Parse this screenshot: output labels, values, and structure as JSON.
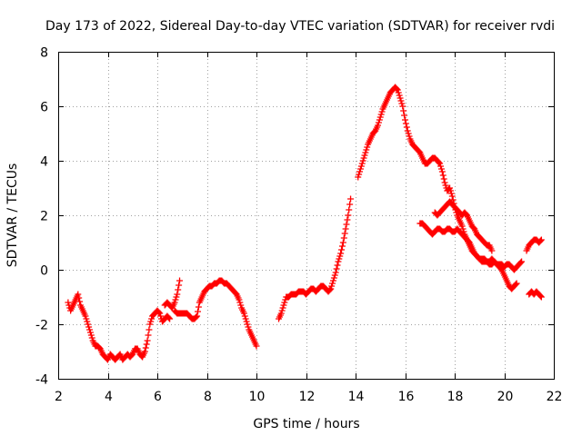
{
  "chart_data": {
    "type": "scatter",
    "title": "Day 173 of 2022, Sidereal Day-to-day VTEC variation (SDTVAR) for receiver rvdi",
    "xlabel": "GPS time / hours",
    "ylabel": "SDTVAR / TECUs",
    "xlim": [
      2,
      22
    ],
    "ylim": [
      -4,
      8
    ],
    "x_ticks": [
      "2",
      "4",
      "6",
      "8",
      "10",
      "12",
      "14",
      "16",
      "18",
      "20",
      "22"
    ],
    "y_ticks": [
      "-4",
      "-2",
      "0",
      "2",
      "4",
      "6",
      "8"
    ],
    "grid": true,
    "marker": "plus",
    "marker_color": "#ff0000",
    "series": [
      {
        "name": "segment 1",
        "points": [
          [
            2.4,
            -1.2
          ],
          [
            2.5,
            -1.5
          ],
          [
            2.6,
            -1.3
          ],
          [
            2.7,
            -1.1
          ],
          [
            2.8,
            -0.9
          ],
          [
            2.9,
            -1.3
          ],
          [
            3.0,
            -1.5
          ],
          [
            3.1,
            -1.7
          ],
          [
            3.2,
            -2.0
          ],
          [
            3.3,
            -2.3
          ],
          [
            3.4,
            -2.6
          ],
          [
            3.5,
            -2.8
          ],
          [
            3.6,
            -2.8
          ],
          [
            3.7,
            -2.9
          ],
          [
            3.8,
            -3.1
          ],
          [
            3.9,
            -3.2
          ],
          [
            4.0,
            -3.3
          ],
          [
            4.1,
            -3.1
          ],
          [
            4.2,
            -3.2
          ],
          [
            4.3,
            -3.3
          ],
          [
            4.4,
            -3.2
          ],
          [
            4.5,
            -3.1
          ],
          [
            4.6,
            -3.3
          ],
          [
            4.7,
            -3.2
          ],
          [
            4.8,
            -3.1
          ],
          [
            4.9,
            -3.2
          ],
          [
            5.0,
            -3.1
          ],
          [
            5.1,
            -2.9
          ],
          [
            5.2,
            -2.9
          ],
          [
            5.3,
            -3.1
          ],
          [
            5.4,
            -3.2
          ],
          [
            5.5,
            -3.0
          ],
          [
            5.6,
            -2.6
          ],
          [
            5.7,
            -2.0
          ],
          [
            5.8,
            -1.7
          ],
          [
            5.9,
            -1.6
          ],
          [
            6.0,
            -1.5
          ],
          [
            6.1,
            -1.6
          ],
          [
            6.2,
            -1.9
          ],
          [
            6.3,
            -1.8
          ],
          [
            6.4,
            -1.7
          ],
          [
            6.5,
            -1.8
          ],
          [
            6.3,
            -1.3
          ],
          [
            6.4,
            -1.2
          ],
          [
            6.5,
            -1.3
          ],
          [
            6.6,
            -1.4
          ],
          [
            6.7,
            -1.2
          ],
          [
            6.8,
            -0.9
          ],
          [
            6.9,
            -0.4
          ],
          [
            6.7,
            -1.5
          ],
          [
            6.8,
            -1.6
          ],
          [
            6.9,
            -1.6
          ],
          [
            7.0,
            -1.6
          ],
          [
            7.1,
            -1.6
          ],
          [
            7.2,
            -1.6
          ],
          [
            7.3,
            -1.7
          ],
          [
            7.4,
            -1.8
          ],
          [
            7.5,
            -1.8
          ],
          [
            7.6,
            -1.7
          ],
          [
            7.7,
            -1.2
          ],
          [
            7.8,
            -1.0
          ],
          [
            7.9,
            -0.8
          ],
          [
            8.0,
            -0.7
          ],
          [
            8.1,
            -0.6
          ],
          [
            8.2,
            -0.6
          ],
          [
            8.3,
            -0.5
          ],
          [
            8.4,
            -0.5
          ],
          [
            8.5,
            -0.4
          ],
          [
            8.6,
            -0.4
          ],
          [
            8.7,
            -0.5
          ],
          [
            8.8,
            -0.5
          ],
          [
            8.9,
            -0.6
          ],
          [
            9.0,
            -0.7
          ],
          [
            9.1,
            -0.8
          ],
          [
            9.2,
            -0.9
          ],
          [
            9.3,
            -1.1
          ],
          [
            9.4,
            -1.4
          ],
          [
            9.5,
            -1.6
          ],
          [
            9.6,
            -1.9
          ],
          [
            9.7,
            -2.2
          ],
          [
            9.8,
            -2.4
          ],
          [
            9.9,
            -2.6
          ],
          [
            10.0,
            -2.8
          ]
        ]
      },
      {
        "name": "segment 2",
        "points": [
          [
            10.9,
            -1.8
          ],
          [
            11.0,
            -1.6
          ],
          [
            11.1,
            -1.3
          ],
          [
            11.2,
            -1.0
          ],
          [
            11.3,
            -1.0
          ],
          [
            11.4,
            -0.9
          ],
          [
            11.5,
            -0.9
          ],
          [
            11.6,
            -0.9
          ],
          [
            11.7,
            -0.8
          ],
          [
            11.8,
            -0.8
          ],
          [
            11.9,
            -0.8
          ],
          [
            12.0,
            -0.9
          ],
          [
            12.1,
            -0.8
          ],
          [
            12.2,
            -0.7
          ],
          [
            12.3,
            -0.7
          ],
          [
            12.4,
            -0.8
          ],
          [
            12.5,
            -0.7
          ],
          [
            12.6,
            -0.6
          ],
          [
            12.7,
            -0.6
          ],
          [
            12.8,
            -0.7
          ],
          [
            12.9,
            -0.8
          ],
          [
            13.0,
            -0.7
          ],
          [
            13.1,
            -0.4
          ],
          [
            13.2,
            -0.1
          ],
          [
            13.3,
            0.3
          ],
          [
            13.4,
            0.6
          ],
          [
            13.5,
            1.0
          ],
          [
            13.6,
            1.5
          ],
          [
            13.7,
            2.0
          ],
          [
            13.8,
            2.6
          ]
        ]
      },
      {
        "name": "segment 3",
        "points": [
          [
            14.1,
            3.4
          ],
          [
            14.2,
            3.7
          ],
          [
            14.3,
            4.0
          ],
          [
            14.4,
            4.3
          ],
          [
            14.5,
            4.6
          ],
          [
            14.6,
            4.8
          ],
          [
            14.7,
            5.0
          ],
          [
            14.8,
            5.1
          ],
          [
            14.9,
            5.3
          ],
          [
            15.0,
            5.6
          ],
          [
            15.1,
            5.9
          ],
          [
            15.2,
            6.1
          ],
          [
            15.3,
            6.3
          ],
          [
            15.4,
            6.5
          ],
          [
            15.5,
            6.6
          ],
          [
            15.6,
            6.7
          ],
          [
            15.7,
            6.6
          ],
          [
            15.8,
            6.3
          ],
          [
            15.9,
            6.0
          ],
          [
            16.0,
            5.5
          ],
          [
            16.1,
            5.1
          ],
          [
            16.2,
            4.8
          ],
          [
            16.3,
            4.6
          ],
          [
            16.4,
            4.5
          ],
          [
            16.5,
            4.4
          ],
          [
            16.6,
            4.3
          ],
          [
            16.7,
            4.1
          ],
          [
            16.8,
            3.9
          ],
          [
            16.9,
            3.9
          ],
          [
            17.0,
            4.0
          ],
          [
            17.1,
            4.1
          ],
          [
            17.2,
            4.1
          ],
          [
            17.3,
            4.0
          ],
          [
            17.4,
            3.9
          ],
          [
            17.5,
            3.6
          ],
          [
            17.6,
            3.2
          ],
          [
            17.7,
            2.9
          ],
          [
            17.8,
            3.0
          ],
          [
            17.9,
            2.7
          ],
          [
            18.0,
            2.3
          ],
          [
            18.1,
            2.0
          ],
          [
            18.2,
            1.8
          ],
          [
            18.3,
            1.6
          ],
          [
            18.4,
            1.3
          ],
          [
            18.5,
            1.1
          ],
          [
            18.6,
            0.9
          ],
          [
            18.7,
            0.7
          ],
          [
            18.8,
            0.6
          ],
          [
            18.9,
            0.5
          ],
          [
            19.0,
            0.4
          ],
          [
            19.1,
            0.3
          ],
          [
            19.2,
            0.3
          ],
          [
            19.3,
            0.3
          ],
          [
            19.4,
            0.2
          ],
          [
            19.5,
            0.2
          ],
          [
            19.6,
            0.3
          ],
          [
            19.7,
            0.2
          ],
          [
            19.8,
            0.1
          ],
          [
            19.9,
            0.0
          ],
          [
            20.0,
            -0.2
          ],
          [
            20.1,
            -0.4
          ],
          [
            20.2,
            -0.6
          ],
          [
            20.3,
            -0.7
          ],
          [
            20.4,
            -0.6
          ],
          [
            20.5,
            -0.5
          ]
        ]
      },
      {
        "name": "segment 4",
        "points": [
          [
            16.6,
            1.7
          ],
          [
            16.7,
            1.7
          ],
          [
            16.8,
            1.6
          ],
          [
            16.9,
            1.5
          ],
          [
            17.0,
            1.4
          ],
          [
            17.1,
            1.3
          ],
          [
            17.2,
            1.4
          ],
          [
            17.3,
            1.5
          ],
          [
            17.4,
            1.5
          ],
          [
            17.5,
            1.4
          ],
          [
            17.6,
            1.4
          ],
          [
            17.7,
            1.5
          ],
          [
            17.8,
            1.5
          ],
          [
            17.9,
            1.4
          ],
          [
            18.0,
            1.4
          ],
          [
            18.1,
            1.5
          ],
          [
            18.2,
            1.4
          ],
          [
            18.3,
            1.3
          ],
          [
            18.4,
            1.2
          ],
          [
            18.5,
            1.1
          ],
          [
            18.6,
            1.0
          ],
          [
            18.7,
            0.8
          ],
          [
            18.8,
            0.6
          ],
          [
            18.9,
            0.5
          ],
          [
            19.0,
            0.4
          ],
          [
            19.1,
            0.4
          ],
          [
            19.2,
            0.4
          ],
          [
            19.3,
            0.3
          ],
          [
            19.4,
            0.3
          ],
          [
            19.5,
            0.4
          ],
          [
            19.6,
            0.3
          ],
          [
            19.7,
            0.2
          ],
          [
            19.8,
            0.2
          ],
          [
            19.9,
            0.2
          ],
          [
            20.0,
            0.1
          ],
          [
            20.1,
            0.2
          ],
          [
            20.2,
            0.2
          ],
          [
            20.3,
            0.1
          ],
          [
            20.4,
            0.0
          ],
          [
            20.5,
            0.1
          ],
          [
            20.6,
            0.2
          ],
          [
            20.7,
            0.3
          ]
        ]
      },
      {
        "name": "segment 5",
        "points": [
          [
            17.2,
            2.1
          ],
          [
            17.3,
            2.0
          ],
          [
            17.4,
            2.1
          ],
          [
            17.5,
            2.2
          ],
          [
            17.6,
            2.3
          ],
          [
            17.7,
            2.4
          ],
          [
            17.8,
            2.5
          ],
          [
            17.9,
            2.4
          ],
          [
            18.0,
            2.3
          ],
          [
            18.1,
            2.2
          ],
          [
            18.2,
            2.1
          ],
          [
            18.3,
            2.0
          ],
          [
            18.4,
            2.1
          ],
          [
            18.5,
            2.0
          ],
          [
            18.6,
            1.8
          ],
          [
            18.7,
            1.6
          ],
          [
            18.8,
            1.5
          ],
          [
            18.9,
            1.3
          ],
          [
            19.0,
            1.2
          ],
          [
            19.1,
            1.1
          ],
          [
            19.2,
            1.0
          ],
          [
            19.3,
            0.9
          ],
          [
            19.4,
            0.9
          ],
          [
            19.5,
            0.7
          ]
        ]
      },
      {
        "name": "segment 6",
        "points": [
          [
            20.9,
            0.7
          ],
          [
            21.0,
            0.9
          ],
          [
            21.1,
            1.0
          ],
          [
            21.2,
            1.1
          ],
          [
            21.3,
            1.1
          ],
          [
            21.4,
            1.0
          ],
          [
            21.5,
            1.1
          ],
          [
            21.0,
            -0.9
          ],
          [
            21.1,
            -0.8
          ],
          [
            21.2,
            -0.9
          ],
          [
            21.3,
            -0.8
          ],
          [
            21.4,
            -0.9
          ],
          [
            21.5,
            -1.0
          ]
        ]
      }
    ]
  }
}
